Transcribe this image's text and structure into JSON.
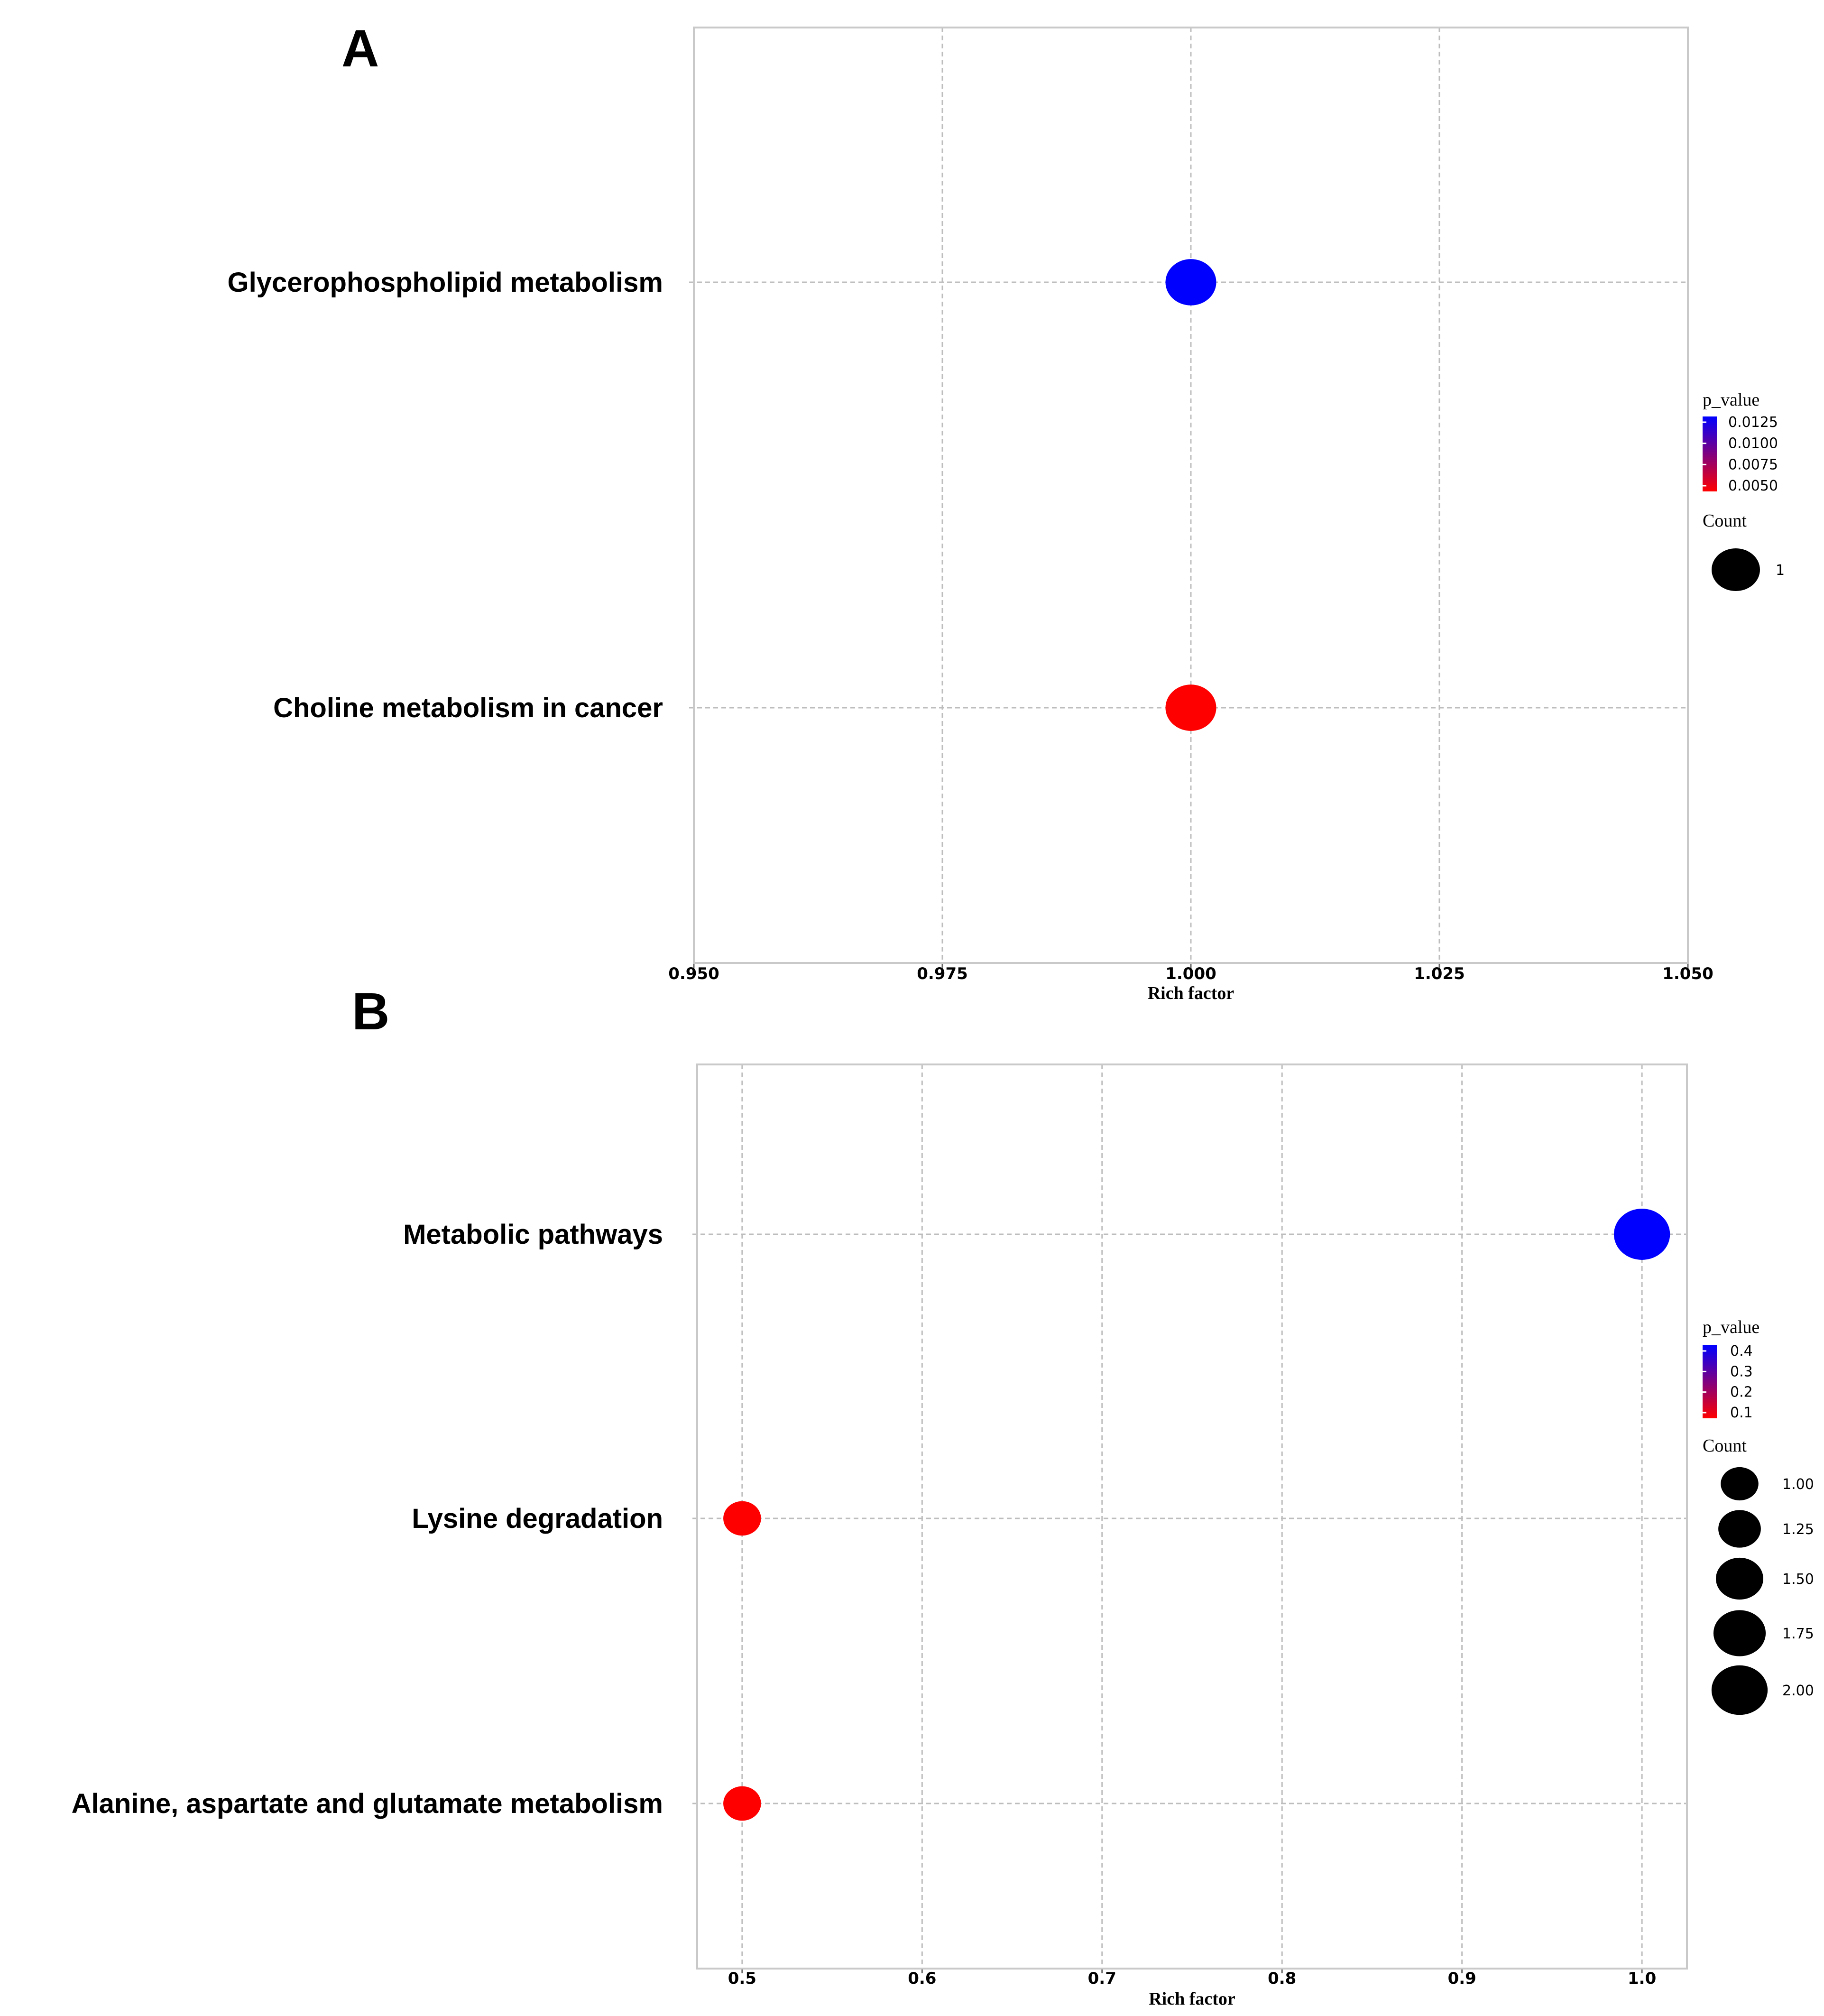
{
  "chart_data": [
    {
      "panel": "A",
      "type": "scatter",
      "subtype": "bubble",
      "xlabel": "Rich factor",
      "ylabel": "",
      "xlim": [
        0.95,
        1.05
      ],
      "xticks": [
        "0.950",
        "0.975",
        "1.000",
        "1.025",
        "1.050"
      ],
      "xtick_values": [
        0.95,
        0.975,
        1.0,
        1.025,
        1.05
      ],
      "categories": [
        "Glycerophospholipid metabolism",
        "Choline metabolism in cancer"
      ],
      "points": [
        {
          "label": "Glycerophospholipid metabolism",
          "rich_factor": 1.0,
          "p_value": 0.0135,
          "count": 1
        },
        {
          "label": "Choline metabolism in cancer",
          "rich_factor": 1.0,
          "p_value": 0.004,
          "count": 1
        }
      ],
      "color_legend": {
        "title": "p_value",
        "ticks": [
          "0.0125",
          "0.0100",
          "0.0075",
          "0.0050"
        ],
        "low_color": "#ff0000",
        "high_color": "#0000ff"
      },
      "size_legend": {
        "title": "Count",
        "ticks": [
          "1"
        ],
        "values": [
          1
        ]
      }
    },
    {
      "panel": "B",
      "type": "scatter",
      "subtype": "bubble",
      "xlabel": "Rich factor",
      "ylabel": "",
      "xlim": [
        0.475,
        1.025
      ],
      "xticks": [
        "0.5",
        "0.6",
        "0.7",
        "0.8",
        "0.9",
        "1.0"
      ],
      "xtick_values": [
        0.5,
        0.6,
        0.7,
        0.8,
        0.9,
        1.0
      ],
      "categories": [
        "Metabolic pathways",
        "Lysine degradation",
        "Alanine, aspartate and glutamate metabolism"
      ],
      "points": [
        {
          "label": "Metabolic pathways",
          "rich_factor": 1.0,
          "p_value": 0.45,
          "count": 2
        },
        {
          "label": "Lysine degradation",
          "rich_factor": 0.5,
          "p_value": 0.05,
          "count": 1
        },
        {
          "label": "Alanine, aspartate and glutamate metabolism",
          "rich_factor": 0.5,
          "p_value": 0.05,
          "count": 1
        }
      ],
      "color_legend": {
        "title": "p_value",
        "ticks": [
          "0.4",
          "0.3",
          "0.2",
          "0.1"
        ],
        "low_color": "#ff0000",
        "high_color": "#0000ff"
      },
      "size_legend": {
        "title": "Count",
        "ticks": [
          "1.00",
          "1.25",
          "1.50",
          "1.75",
          "2.00"
        ],
        "values": [
          1.0,
          1.25,
          1.5,
          1.75,
          2.0
        ]
      }
    }
  ]
}
